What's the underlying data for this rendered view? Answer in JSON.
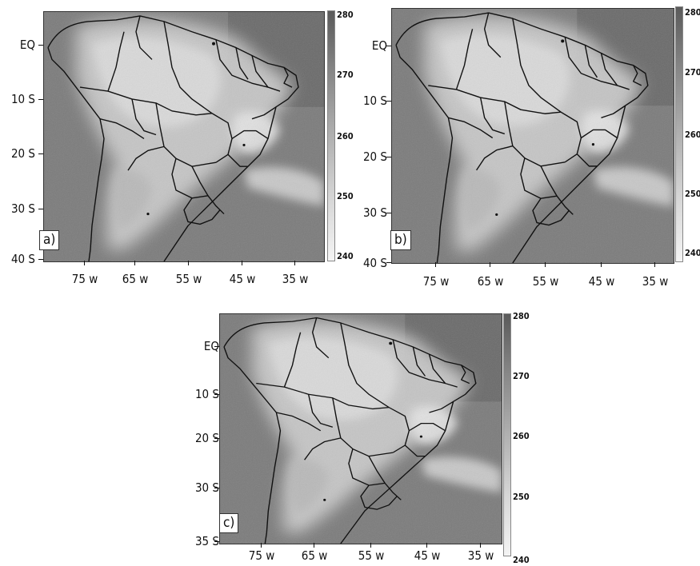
{
  "panels": [
    {
      "letter": "a)",
      "colorbar_labels": [
        "280",
        "270",
        "260",
        "250",
        "240"
      ],
      "lat_labels": [
        "EQ",
        "10 S",
        "20 S",
        "30 S",
        "40 S"
      ],
      "lon_labels": [
        "75 w",
        "65 w",
        "55 w",
        "45 w",
        "35 w"
      ]
    },
    {
      "letter": "b)",
      "colorbar_labels": [
        "280",
        "270",
        "260",
        "250",
        "240"
      ],
      "lat_labels": [
        "EQ",
        "10 S",
        "20 S",
        "30 S",
        "40 S"
      ],
      "lon_labels": [
        "75 w",
        "65 w",
        "55 w",
        "45 w",
        "35 w"
      ]
    },
    {
      "letter": "c)",
      "colorbar_labels": [
        "280",
        "270",
        "260",
        "250",
        "240"
      ],
      "lat_labels": [
        "EQ",
        "10 S",
        "20 S",
        "30 S",
        "35 S"
      ],
      "lon_labels": [
        "75 w",
        "65 w",
        "55 w",
        "45 w",
        "35 w"
      ]
    }
  ],
  "colors": {
    "colorbar_top": "#5e5e5e",
    "colorbar_bottom": "#f4f4f4",
    "map_background": "#7d7d7d",
    "borders": "#111111"
  }
}
